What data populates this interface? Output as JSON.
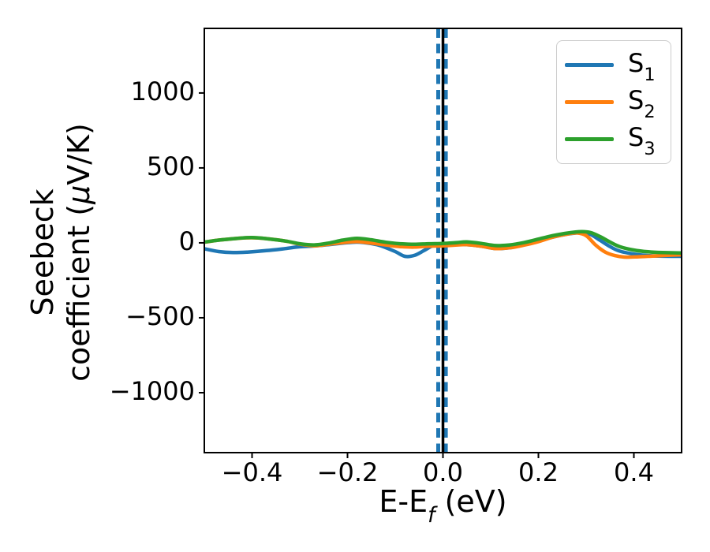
{
  "chart_data": {
    "type": "line",
    "title": "",
    "xlabel": {
      "pre": "E-E",
      "sub": "f",
      "post": " (eV)"
    },
    "ylabel": {
      "line1": "Seebeck",
      "line2_pre": "coefficient  (",
      "line2_mu": "μ",
      "line2_post": "V/K)"
    },
    "xlim": [
      -0.5,
      0.5
    ],
    "ylim": [
      -1400,
      1431
    ],
    "grid": false,
    "legend_position": "upper right",
    "axis_color": "#000000",
    "background_color": "#ffffff",
    "xticks": [
      {
        "v": -0.4,
        "label": "−0.4"
      },
      {
        "v": -0.2,
        "label": "−0.2"
      },
      {
        "v": 0.0,
        "label": "0.0"
      },
      {
        "v": 0.2,
        "label": "0.2"
      },
      {
        "v": 0.4,
        "label": "0.4"
      }
    ],
    "yticks": [
      {
        "v": 1000,
        "label": "1000"
      },
      {
        "v": 500,
        "label": "500"
      },
      {
        "v": 0,
        "label": "0"
      },
      {
        "v": -500,
        "label": "−500"
      },
      {
        "v": -1000,
        "label": "−1000"
      }
    ],
    "vlines": [
      {
        "name": "dashed-marker-left",
        "x": -0.01,
        "color": "#1f77b4",
        "style": "dashed",
        "width": 5
      },
      {
        "name": "dashed-marker-right",
        "x": 0.006,
        "color": "#1f77b4",
        "style": "dashed",
        "width": 5
      },
      {
        "name": "solid-marker-zero",
        "x": 0.0,
        "color": "#000000",
        "style": "solid",
        "width": 3.5
      }
    ],
    "series": [
      {
        "name": "S",
        "sub": "1",
        "color": "#1f77b4",
        "points": [
          [
            -0.5,
            -40
          ],
          [
            -0.47,
            -58
          ],
          [
            -0.44,
            -65
          ],
          [
            -0.41,
            -62
          ],
          [
            -0.37,
            -52
          ],
          [
            -0.33,
            -38
          ],
          [
            -0.3,
            -26
          ],
          [
            -0.27,
            -21
          ],
          [
            -0.24,
            -12
          ],
          [
            -0.21,
            -2
          ],
          [
            -0.18,
            5
          ],
          [
            -0.15,
            -5
          ],
          [
            -0.13,
            -20
          ],
          [
            -0.1,
            -58
          ],
          [
            -0.08,
            -90
          ],
          [
            -0.06,
            -84
          ],
          [
            -0.04,
            -52
          ],
          [
            -0.02,
            -18
          ],
          [
            0.0,
            -14
          ],
          [
            0.03,
            -12
          ],
          [
            0.05,
            -12
          ],
          [
            0.08,
            -22
          ],
          [
            0.11,
            -38
          ],
          [
            0.14,
            -33
          ],
          [
            0.17,
            -12
          ],
          [
            0.2,
            12
          ],
          [
            0.23,
            38
          ],
          [
            0.26,
            58
          ],
          [
            0.29,
            68
          ],
          [
            0.31,
            55
          ],
          [
            0.33,
            15
          ],
          [
            0.35,
            -25
          ],
          [
            0.37,
            -55
          ],
          [
            0.4,
            -75
          ],
          [
            0.43,
            -85
          ],
          [
            0.46,
            -89
          ],
          [
            0.5,
            -90
          ]
        ]
      },
      {
        "name": "S",
        "sub": "2",
        "color": "#ff7f0e",
        "points": [
          [
            -0.5,
            4
          ],
          [
            -0.47,
            18
          ],
          [
            -0.43,
            30
          ],
          [
            -0.4,
            34
          ],
          [
            -0.37,
            28
          ],
          [
            -0.33,
            12
          ],
          [
            -0.3,
            -8
          ],
          [
            -0.27,
            -20
          ],
          [
            -0.24,
            -10
          ],
          [
            -0.21,
            2
          ],
          [
            -0.18,
            8
          ],
          [
            -0.15,
            -2
          ],
          [
            -0.12,
            -14
          ],
          [
            -0.09,
            -25
          ],
          [
            -0.06,
            -28
          ],
          [
            -0.03,
            -22
          ],
          [
            0.0,
            -20
          ],
          [
            0.03,
            -14
          ],
          [
            0.05,
            -12
          ],
          [
            0.08,
            -22
          ],
          [
            0.11,
            -38
          ],
          [
            0.14,
            -33
          ],
          [
            0.17,
            -15
          ],
          [
            0.2,
            8
          ],
          [
            0.23,
            38
          ],
          [
            0.26,
            58
          ],
          [
            0.28,
            66
          ],
          [
            0.3,
            48
          ],
          [
            0.32,
            -15
          ],
          [
            0.34,
            -62
          ],
          [
            0.36,
            -85
          ],
          [
            0.38,
            -95
          ],
          [
            0.41,
            -93
          ],
          [
            0.44,
            -88
          ],
          [
            0.47,
            -83
          ],
          [
            0.5,
            -80
          ]
        ]
      },
      {
        "name": "S",
        "sub": "3",
        "color": "#2ca02c",
        "points": [
          [
            -0.5,
            5
          ],
          [
            -0.47,
            18
          ],
          [
            -0.43,
            30
          ],
          [
            -0.4,
            35
          ],
          [
            -0.37,
            28
          ],
          [
            -0.33,
            12
          ],
          [
            -0.3,
            -6
          ],
          [
            -0.27,
            -14
          ],
          [
            -0.24,
            -2
          ],
          [
            -0.21,
            18
          ],
          [
            -0.18,
            30
          ],
          [
            -0.15,
            20
          ],
          [
            -0.12,
            4
          ],
          [
            -0.09,
            -6
          ],
          [
            -0.06,
            -10
          ],
          [
            -0.03,
            -6
          ],
          [
            0.0,
            -4
          ],
          [
            0.03,
            2
          ],
          [
            0.05,
            6
          ],
          [
            0.08,
            -4
          ],
          [
            0.11,
            -18
          ],
          [
            0.14,
            -14
          ],
          [
            0.17,
            2
          ],
          [
            0.2,
            25
          ],
          [
            0.23,
            48
          ],
          [
            0.26,
            65
          ],
          [
            0.29,
            75
          ],
          [
            0.31,
            68
          ],
          [
            0.33,
            40
          ],
          [
            0.35,
            5
          ],
          [
            0.37,
            -25
          ],
          [
            0.4,
            -48
          ],
          [
            0.43,
            -60
          ],
          [
            0.46,
            -65
          ],
          [
            0.5,
            -67
          ]
        ]
      }
    ]
  }
}
